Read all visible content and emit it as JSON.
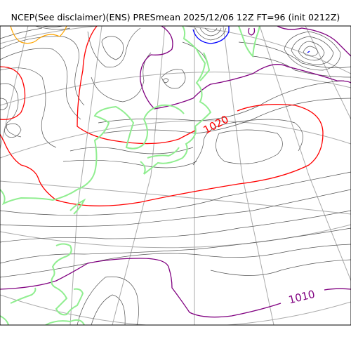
{
  "title": "NCEP(See disclaimer)(ENS) PRESmean 2025/12/06 12Z FT=96 (init 0212Z)",
  "contour_labels": {
    "high": "1020",
    "low": "1010"
  },
  "colors": {
    "isobar_minor": "#555555",
    "isobar_1020": "#ff0000",
    "isobar_1010": "#800080",
    "isobar_low_center": "#0000ff",
    "isobar_high": "#ffa500",
    "coastline": "#90ee90",
    "graticule": "#aaaaaa",
    "frame": "#000000"
  }
}
